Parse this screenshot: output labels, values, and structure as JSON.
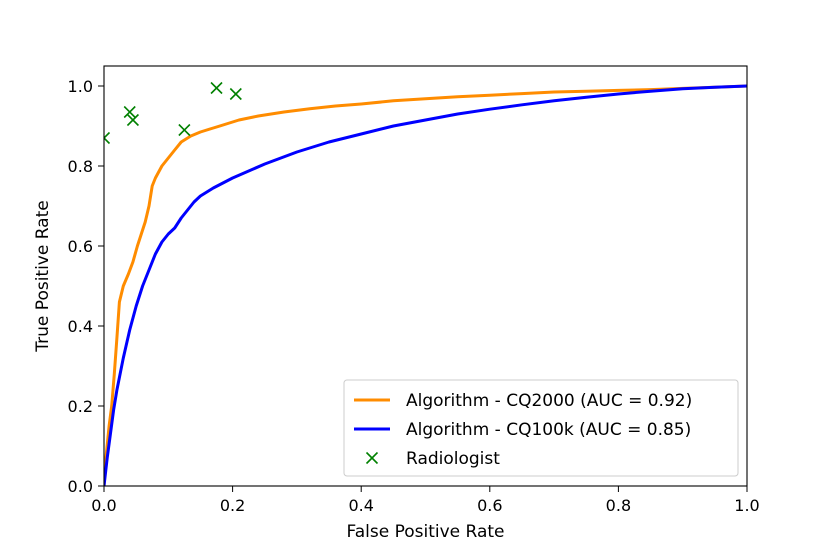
{
  "chart_data": {
    "type": "line",
    "title": "",
    "xlabel": "False Positive Rate",
    "ylabel": "True Positive Rate",
    "xlim": [
      0.0,
      1.0
    ],
    "ylim": [
      0.0,
      1.05
    ],
    "xticks": [
      "0.0",
      "0.2",
      "0.4",
      "0.6",
      "0.8",
      "1.0"
    ],
    "yticks": [
      "0.0",
      "0.2",
      "0.4",
      "0.6",
      "0.8",
      "1.0"
    ],
    "xtick_values": [
      0.0,
      0.2,
      0.4,
      0.6,
      0.8,
      1.0
    ],
    "ytick_values": [
      0.0,
      0.2,
      0.4,
      0.6,
      0.8,
      1.0
    ],
    "grid": false,
    "legend_position": "bottom-right",
    "series": [
      {
        "name": "Algorithm - CQ2000 (AUC = 0.92)",
        "kind": "line",
        "color": "#ff8c00",
        "x": [
          0,
          0.003,
          0.008,
          0.012,
          0.016,
          0.02,
          0.024,
          0.03,
          0.038,
          0.045,
          0.052,
          0.058,
          0.064,
          0.07,
          0.075,
          0.08,
          0.09,
          0.1,
          0.11,
          0.12,
          0.135,
          0.15,
          0.17,
          0.19,
          0.21,
          0.24,
          0.28,
          0.32,
          0.36,
          0.4,
          0.45,
          0.5,
          0.55,
          0.6,
          0.65,
          0.7,
          0.75,
          0.8,
          0.85,
          0.9,
          0.95,
          1.0
        ],
        "y": [
          0,
          0.07,
          0.15,
          0.2,
          0.28,
          0.37,
          0.46,
          0.5,
          0.53,
          0.56,
          0.6,
          0.63,
          0.66,
          0.7,
          0.75,
          0.77,
          0.8,
          0.82,
          0.84,
          0.86,
          0.875,
          0.885,
          0.895,
          0.905,
          0.915,
          0.925,
          0.935,
          0.943,
          0.95,
          0.955,
          0.963,
          0.968,
          0.973,
          0.977,
          0.981,
          0.985,
          0.987,
          0.989,
          0.991,
          0.994,
          0.997,
          1.0
        ]
      },
      {
        "name": "Algorithm - CQ100k (AUC = 0.85)",
        "kind": "line",
        "color": "#0000ff",
        "x": [
          0,
          0.005,
          0.01,
          0.015,
          0.02,
          0.03,
          0.04,
          0.05,
          0.06,
          0.07,
          0.08,
          0.09,
          0.1,
          0.11,
          0.12,
          0.13,
          0.14,
          0.15,
          0.17,
          0.2,
          0.25,
          0.3,
          0.35,
          0.4,
          0.45,
          0.5,
          0.55,
          0.6,
          0.65,
          0.7,
          0.75,
          0.8,
          0.85,
          0.9,
          0.95,
          1.0
        ],
        "y": [
          0,
          0.07,
          0.13,
          0.19,
          0.24,
          0.32,
          0.39,
          0.45,
          0.5,
          0.54,
          0.58,
          0.61,
          0.63,
          0.645,
          0.67,
          0.69,
          0.71,
          0.725,
          0.745,
          0.77,
          0.805,
          0.835,
          0.86,
          0.88,
          0.9,
          0.915,
          0.93,
          0.942,
          0.953,
          0.963,
          0.972,
          0.98,
          0.987,
          0.993,
          0.997,
          1.0
        ]
      },
      {
        "name": "Radiologist",
        "kind": "scatter",
        "marker": "x",
        "color": "#008000",
        "x": [
          0.0,
          0.04,
          0.045,
          0.125,
          0.175,
          0.205
        ],
        "y": [
          0.87,
          0.935,
          0.915,
          0.89,
          0.995,
          0.98
        ]
      }
    ]
  }
}
